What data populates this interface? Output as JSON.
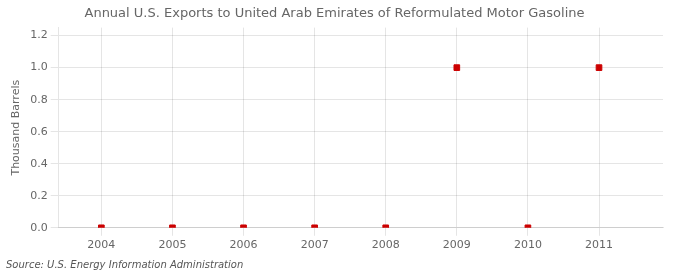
{
  "chart_data": {
    "type": "scatter",
    "title": "Annual U.S. Exports to United Arab Emirates of Reformulated Motor Gasoline",
    "ylabel": "Thousand Barrels",
    "source": "Source: U.S. Energy Information Administration",
    "x": [
      2004,
      2005,
      2006,
      2007,
      2008,
      2009,
      2010,
      2011
    ],
    "values": [
      0.0,
      0.0,
      0.0,
      0.0,
      0.0,
      1.0,
      0.0,
      1.0
    ],
    "xlim": [
      2003.4,
      2011.9
    ],
    "ylim": [
      0,
      1.25
    ],
    "xticks": [
      2004,
      2005,
      2006,
      2007,
      2008,
      2009,
      2010,
      2011
    ],
    "yticks": [
      {
        "value": 0,
        "label": "0.0"
      },
      0.2,
      0.4,
      0.6,
      0.8,
      {
        "value": 1,
        "label": "1.0"
      },
      1.2
    ],
    "color": "#cc0000",
    "marker": "square",
    "grid": true
  }
}
